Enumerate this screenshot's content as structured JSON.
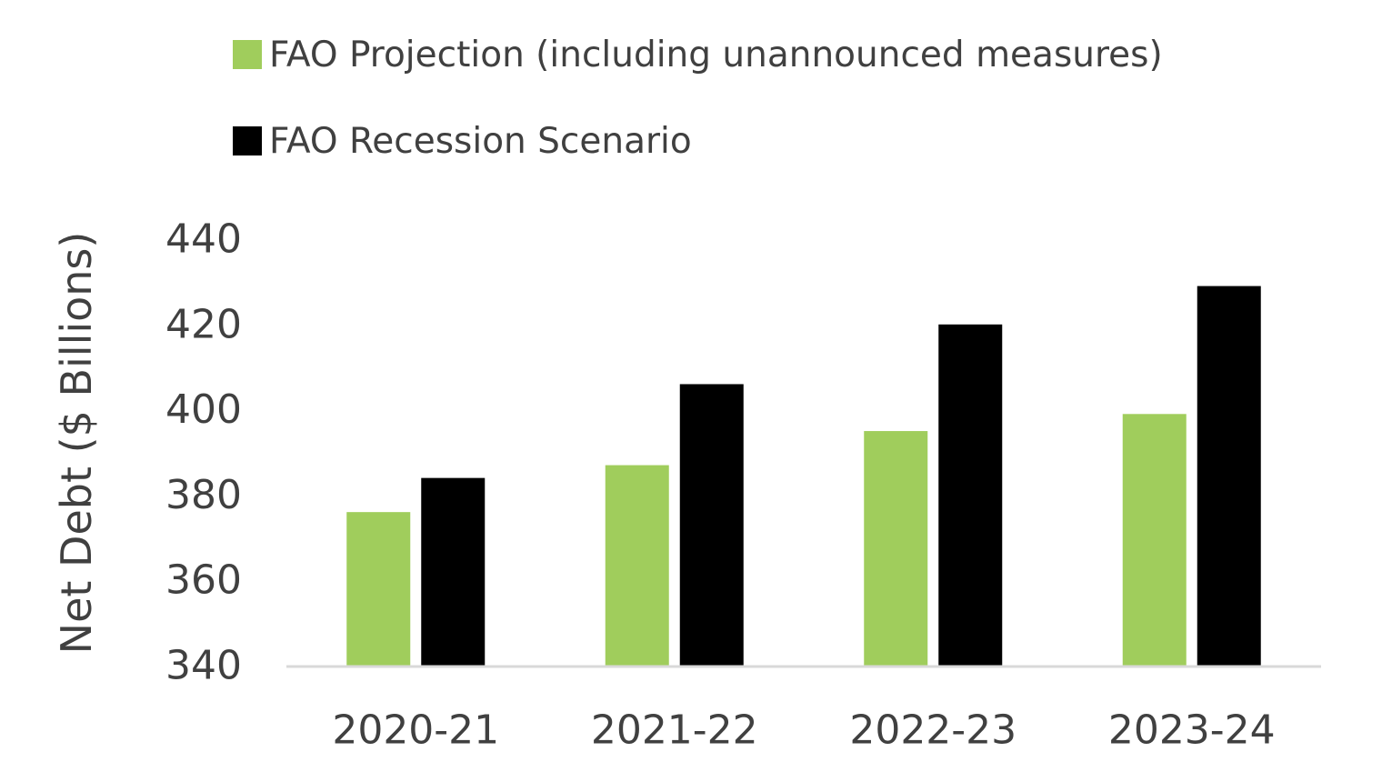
{
  "chart_data": {
    "type": "bar",
    "categories": [
      "2020-21",
      "2021-22",
      "2022-23",
      "2023-24"
    ],
    "series": [
      {
        "name": "FAO Projection (including unannounced measures)",
        "color": "#a0cd5c",
        "values": [
          376,
          387,
          395,
          399
        ]
      },
      {
        "name": "FAO Recession Scenario",
        "color": "#000000",
        "values": [
          384,
          406,
          420,
          429
        ]
      }
    ],
    "xlabel": "",
    "ylabel": "Net Debt ($ Billions)",
    "ylim": [
      340,
      440
    ],
    "yticks": [
      340,
      360,
      380,
      400,
      420,
      440
    ],
    "legend_position": "top-left",
    "grid": false
  }
}
